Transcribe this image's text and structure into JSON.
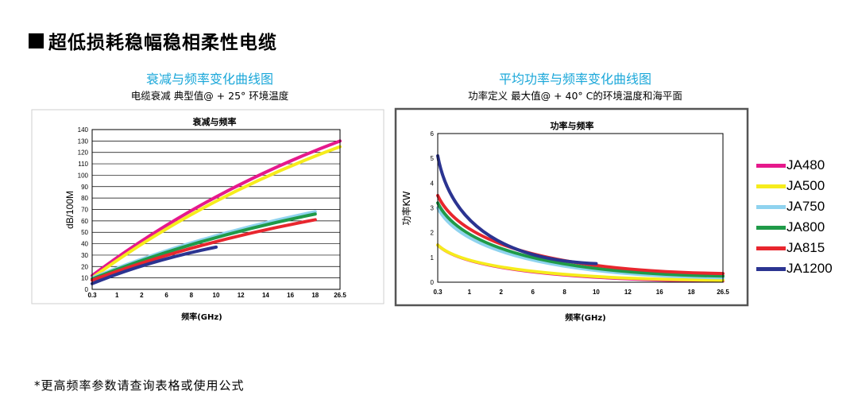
{
  "heading": "超低损耗稳幅稳相柔性电缆",
  "footnote": "*更高频率参数请查询表格或使用公式",
  "legend": [
    {
      "name": "JA480",
      "color": "#e6198c"
    },
    {
      "name": "JA500",
      "color": "#f6ec1c"
    },
    {
      "name": "JA750",
      "color": "#8fd3ef"
    },
    {
      "name": "JA800",
      "color": "#1f9a48"
    },
    {
      "name": "JA815",
      "color": "#e8262e"
    },
    {
      "name": "JA1200",
      "color": "#2b3491"
    }
  ],
  "chart_data": [
    {
      "type": "line",
      "heading": "衰减与频率变化曲线图",
      "subheading": "电缆衰减 典型值@ + 25° 环境温度",
      "title": "衰减与频率",
      "xlabel": "频率(GHz)",
      "ylabel": "dB/100M",
      "x_ticks": [
        "0.3",
        "1",
        "2",
        "6",
        "8",
        "10",
        "12",
        "14",
        "16",
        "18",
        "26.5"
      ],
      "y_ticks": [
        "0",
        "10",
        "20",
        "30",
        "40",
        "50",
        "60",
        "70",
        "80",
        "90",
        "100",
        "110",
        "120",
        "130",
        "140"
      ],
      "ylim": [
        0,
        140
      ],
      "grid": "horizontal",
      "series": [
        {
          "name": "JA480",
          "x": [
            "0.3",
            "26.5"
          ],
          "values": [
            12,
            130
          ]
        },
        {
          "name": "JA500",
          "x": [
            "0.3",
            "26.5"
          ],
          "values": [
            10,
            125
          ]
        },
        {
          "name": "JA750",
          "x": [
            "0.3",
            "18"
          ],
          "values": [
            10,
            68
          ]
        },
        {
          "name": "JA800",
          "x": [
            "0.3",
            "18"
          ],
          "values": [
            9,
            66
          ]
        },
        {
          "name": "JA815",
          "x": [
            "0.3",
            "18"
          ],
          "values": [
            8,
            61
          ]
        },
        {
          "name": "JA1200",
          "x": [
            "0.3",
            "10"
          ],
          "values": [
            5,
            37
          ]
        }
      ]
    },
    {
      "type": "line",
      "heading": "平均功率与频率变化曲线图",
      "subheading": "功率定义  最大值@ + 40° C的环境温度和海平面",
      "title": "功率与频率",
      "xlabel": "频率(GHz)",
      "ylabel": "功率KW",
      "x_ticks": [
        "0.3",
        "1",
        "2",
        "6",
        "8",
        "10",
        "12",
        "16",
        "18",
        "26.5"
      ],
      "y_ticks": [
        "0",
        "1",
        "2",
        "3",
        "4",
        "5",
        "6"
      ],
      "ylim": [
        0,
        6
      ],
      "grid": "none",
      "series": [
        {
          "name": "JA480",
          "x": [
            "0.3",
            "26.5"
          ],
          "values": [
            1.5,
            0.05
          ]
        },
        {
          "name": "JA500",
          "x": [
            "0.3",
            "26.5"
          ],
          "values": [
            1.5,
            0.08
          ]
        },
        {
          "name": "JA750",
          "x": [
            "0.3",
            "26.5"
          ],
          "values": [
            3.0,
            0.18
          ]
        },
        {
          "name": "JA800",
          "x": [
            "0.3",
            "26.5"
          ],
          "values": [
            3.2,
            0.25
          ]
        },
        {
          "name": "JA815",
          "x": [
            "0.3",
            "26.5"
          ],
          "values": [
            3.5,
            0.35
          ]
        },
        {
          "name": "JA1200",
          "x": [
            "0.3",
            "10"
          ],
          "values": [
            5.1,
            0.75
          ]
        }
      ]
    }
  ]
}
